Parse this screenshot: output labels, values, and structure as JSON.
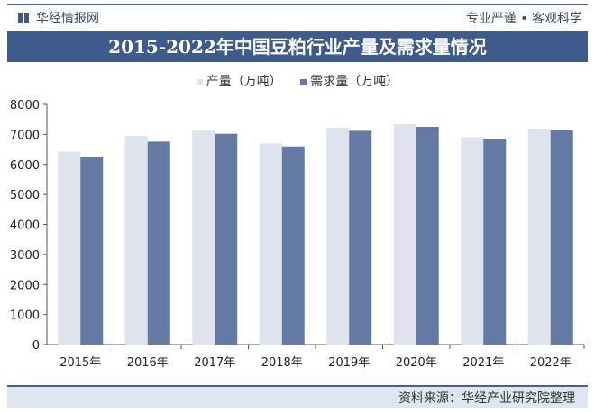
{
  "header": {
    "brand": "华经情报网",
    "slogan": "专业严谨 • 客观科学"
  },
  "footer": {
    "source": "资料来源：华经产业研究院整理"
  },
  "colors": {
    "production": "#dfe3ed",
    "demand": "#637ba4",
    "title_bg": "#3e5b8e"
  },
  "chart_data": {
    "type": "bar",
    "title": "2015-2022年中国豆粕行业产量及需求量情况",
    "categories": [
      "2015年",
      "2016年",
      "2017年",
      "2018年",
      "2019年",
      "2020年",
      "2021年",
      "2022年"
    ],
    "series": [
      {
        "name": "产量（万吨）",
        "values": [
          6430,
          6950,
          7120,
          6700,
          7220,
          7340,
          6910,
          7190
        ]
      },
      {
        "name": "需求量（万吨）",
        "values": [
          6250,
          6760,
          7020,
          6600,
          7120,
          7250,
          6860,
          7160
        ]
      }
    ],
    "ylim": [
      0,
      8000
    ],
    "yticks": [
      "0",
      "1000",
      "2000",
      "3000",
      "4000",
      "5000",
      "6000",
      "7000",
      "8000"
    ],
    "legend": "top",
    "grid": false
  }
}
